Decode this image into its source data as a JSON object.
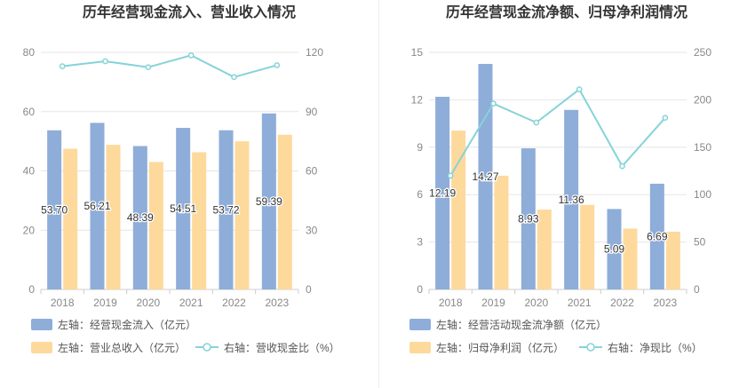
{
  "colors": {
    "bar1": "#8eadd9",
    "bar2": "#fed99c",
    "line": "#86d3d8",
    "grid": "#e6e6e6",
    "axis": "#cccccc"
  },
  "chart_data": [
    {
      "type": "bar",
      "title": "历年经营现金流入、营业收入情况",
      "categories": [
        "2018",
        "2019",
        "2020",
        "2021",
        "2022",
        "2023"
      ],
      "ylim_left": [
        0,
        80
      ],
      "ylim_right": [
        0,
        120
      ],
      "yticks_left": [
        "0",
        "20",
        "40",
        "60",
        "80"
      ],
      "yticks_right": [
        "0",
        "30",
        "60",
        "90",
        "120"
      ],
      "grid": true,
      "legend_position": "bottom",
      "series": [
        {
          "name": "左轴：经营现金流入（亿元）",
          "kind": "bar",
          "axis": "left",
          "values": [
            53.7,
            56.21,
            48.39,
            54.51,
            53.72,
            59.39
          ],
          "labels": [
            "53.70",
            "56.21",
            "48.39",
            "54.51",
            "53.72",
            "59.39"
          ]
        },
        {
          "name": "左轴：营业总收入（亿元）",
          "kind": "bar",
          "axis": "left",
          "values": [
            47.5,
            48.8,
            43.0,
            46.3,
            50.0,
            52.2
          ]
        },
        {
          "name": "右轴：营收现金比（%）",
          "kind": "line",
          "axis": "right",
          "values": [
            113,
            115.5,
            112.5,
            118.5,
            107.5,
            113.5
          ]
        }
      ]
    },
    {
      "type": "bar",
      "title": "历年经营现金流净额、归母净利润情况",
      "categories": [
        "2018",
        "2019",
        "2020",
        "2021",
        "2022",
        "2023"
      ],
      "ylim_left": [
        0,
        15
      ],
      "ylim_right": [
        0,
        250
      ],
      "yticks_left": [
        "0",
        "3",
        "6",
        "9",
        "12",
        "15"
      ],
      "yticks_right": [
        "0",
        "50",
        "100",
        "150",
        "200",
        "250"
      ],
      "grid": true,
      "legend_position": "bottom",
      "series": [
        {
          "name": "左轴：经营活动现金流净额（亿元）",
          "kind": "bar",
          "axis": "left",
          "values": [
            12.19,
            14.27,
            8.93,
            11.36,
            5.09,
            6.69
          ],
          "labels": [
            "12.19",
            "14.27",
            "8.93",
            "11.36",
            "5.09",
            "6.69"
          ]
        },
        {
          "name": "左轴：归母净利润（亿元）",
          "kind": "bar",
          "axis": "left",
          "values": [
            10.05,
            7.2,
            5.05,
            5.35,
            3.85,
            3.65
          ]
        },
        {
          "name": "右轴：净现比（%）",
          "kind": "line",
          "axis": "right",
          "values": [
            120,
            196,
            176,
            211,
            130,
            181
          ]
        }
      ]
    }
  ]
}
